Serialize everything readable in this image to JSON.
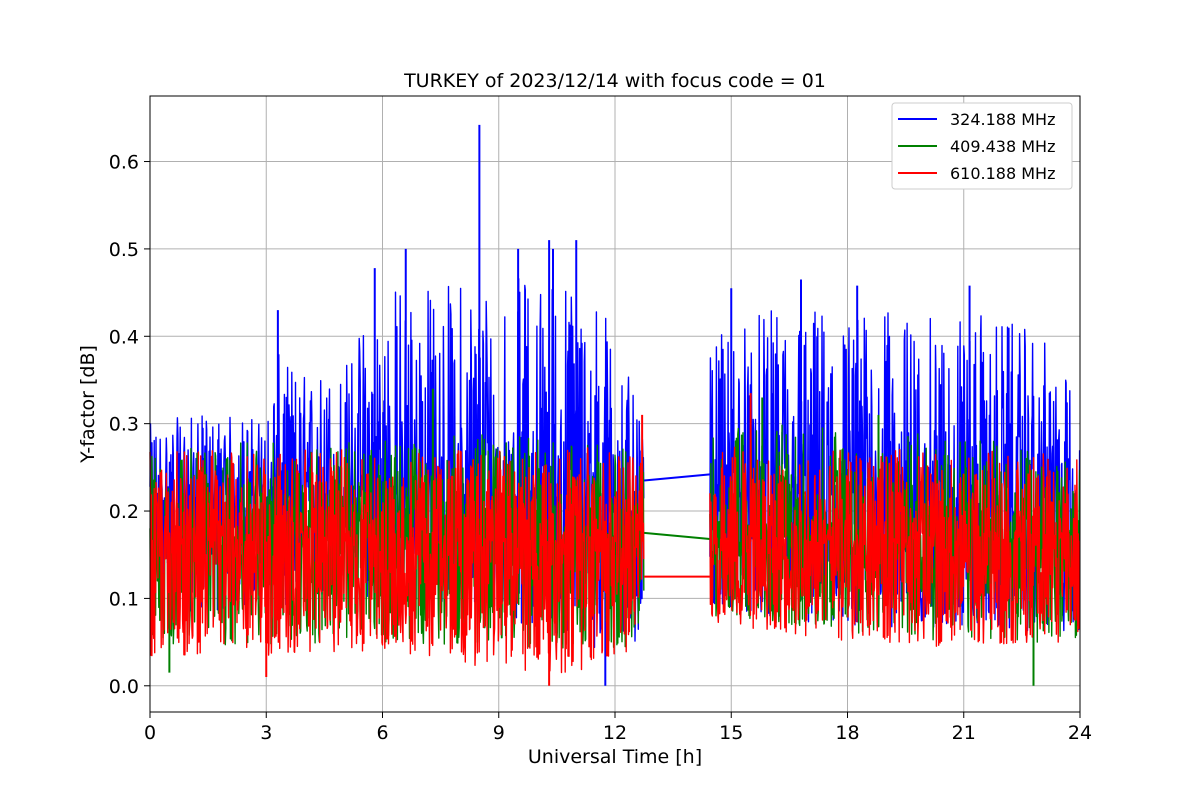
{
  "chart_data": {
    "type": "line",
    "title": "TURKEY of 2023/12/14 with focus code = 01",
    "xlabel": "Universal Time [h]",
    "ylabel": "Y-factor [dB]",
    "xlim": [
      0,
      24
    ],
    "ylim": [
      -0.03,
      0.675
    ],
    "xticks": [
      0,
      3,
      6,
      9,
      12,
      15,
      18,
      21,
      24
    ],
    "yticks": [
      0.0,
      0.1,
      0.2,
      0.3,
      0.4,
      0.5,
      0.6
    ],
    "ytick_labels": [
      "0.0",
      "0.1",
      "0.2",
      "0.3",
      "0.4",
      "0.5",
      "0.6"
    ],
    "grid": true,
    "legend_position": "top-right",
    "data_gap_hours": [
      12.75,
      14.45
    ],
    "series": [
      {
        "name": "324.188 MHz",
        "color": "#0000ff",
        "base": 0.215,
        "noise_low": 0.055,
        "noise_high": 0.06,
        "envelope_upper": [
          [
            0,
            0.3
          ],
          [
            1,
            0.31
          ],
          [
            2,
            0.31
          ],
          [
            3,
            0.31
          ],
          [
            3.3,
            0.38
          ],
          [
            4,
            0.36
          ],
          [
            5,
            0.37
          ],
          [
            5.8,
            0.45
          ],
          [
            6.5,
            0.47
          ],
          [
            7.5,
            0.46
          ],
          [
            8.5,
            0.48
          ],
          [
            9.5,
            0.47
          ],
          [
            10.5,
            0.48
          ],
          [
            11.5,
            0.45
          ],
          [
            12.0,
            0.42
          ],
          [
            12.75,
            0.28
          ],
          [
            14.45,
            0.38
          ],
          [
            15,
            0.42
          ],
          [
            16,
            0.43
          ],
          [
            17,
            0.44
          ],
          [
            18,
            0.43
          ],
          [
            19,
            0.43
          ],
          [
            20,
            0.42
          ],
          [
            21,
            0.43
          ],
          [
            22,
            0.42
          ],
          [
            23,
            0.4
          ],
          [
            24,
            0.33
          ]
        ],
        "envelope_lower": [
          [
            0,
            0.08
          ],
          [
            6,
            0.1
          ],
          [
            9,
            0.08
          ],
          [
            11.7,
            0.04
          ],
          [
            12.75,
            0.04
          ],
          [
            14.45,
            0.09
          ],
          [
            17,
            0.07
          ],
          [
            24,
            0.06
          ]
        ],
        "spikes": [
          [
            8.5,
            0.642
          ],
          [
            10.3,
            0.51
          ],
          [
            11.0,
            0.51
          ],
          [
            9.5,
            0.5
          ],
          [
            6.6,
            0.5
          ],
          [
            10.4,
            0.5
          ],
          [
            16.8,
            0.465
          ],
          [
            15.0,
            0.455
          ],
          [
            18.25,
            0.458
          ],
          [
            21.15,
            0.458
          ],
          [
            5.8,
            0.478
          ],
          [
            3.3,
            0.43
          ],
          [
            11.75,
            0.0
          ]
        ],
        "gap_line": [
          [
            12.75,
            0.235
          ],
          [
            14.45,
            0.242
          ]
        ]
      },
      {
        "name": "409.438 MHz",
        "color": "#008000",
        "base": 0.17,
        "noise_low": 0.07,
        "noise_high": 0.055,
        "envelope_upper": [
          [
            0,
            0.27
          ],
          [
            3,
            0.28
          ],
          [
            6,
            0.28
          ],
          [
            9,
            0.29
          ],
          [
            12.75,
            0.27
          ],
          [
            14.45,
            0.3
          ],
          [
            16,
            0.3
          ],
          [
            20,
            0.29
          ],
          [
            24,
            0.27
          ]
        ],
        "envelope_lower": [
          [
            0,
            0.04
          ],
          [
            6,
            0.05
          ],
          [
            12.75,
            0.04
          ],
          [
            14.45,
            0.08
          ],
          [
            20,
            0.05
          ],
          [
            24,
            0.05
          ]
        ],
        "spikes": [
          [
            7.3,
            0.34
          ],
          [
            15.8,
            0.33
          ],
          [
            18.8,
            0.31
          ],
          [
            22.8,
            0.0
          ],
          [
            0.5,
            0.015
          ]
        ],
        "gap_line": [
          [
            12.75,
            0.175
          ],
          [
            14.45,
            0.168
          ]
        ]
      },
      {
        "name": "610.188 MHz",
        "color": "#ff0000",
        "base": 0.165,
        "noise_low": 0.07,
        "noise_high": 0.06,
        "envelope_upper": [
          [
            0,
            0.27
          ],
          [
            3,
            0.27
          ],
          [
            6,
            0.27
          ],
          [
            9,
            0.27
          ],
          [
            12.75,
            0.28
          ],
          [
            14.45,
            0.29
          ],
          [
            16,
            0.28
          ],
          [
            20,
            0.27
          ],
          [
            24,
            0.27
          ]
        ],
        "envelope_lower": [
          [
            0,
            0.03
          ],
          [
            6,
            0.04
          ],
          [
            10.3,
            0.01
          ],
          [
            12.75,
            0.03
          ],
          [
            14.45,
            0.07
          ],
          [
            20,
            0.04
          ],
          [
            24,
            0.05
          ]
        ],
        "spikes": [
          [
            15.5,
            0.335
          ],
          [
            12.7,
            0.31
          ],
          [
            10.3,
            0.0
          ],
          [
            3.0,
            0.01
          ]
        ],
        "gap_line": [
          [
            12.75,
            0.125
          ],
          [
            14.45,
            0.125
          ]
        ]
      }
    ]
  }
}
